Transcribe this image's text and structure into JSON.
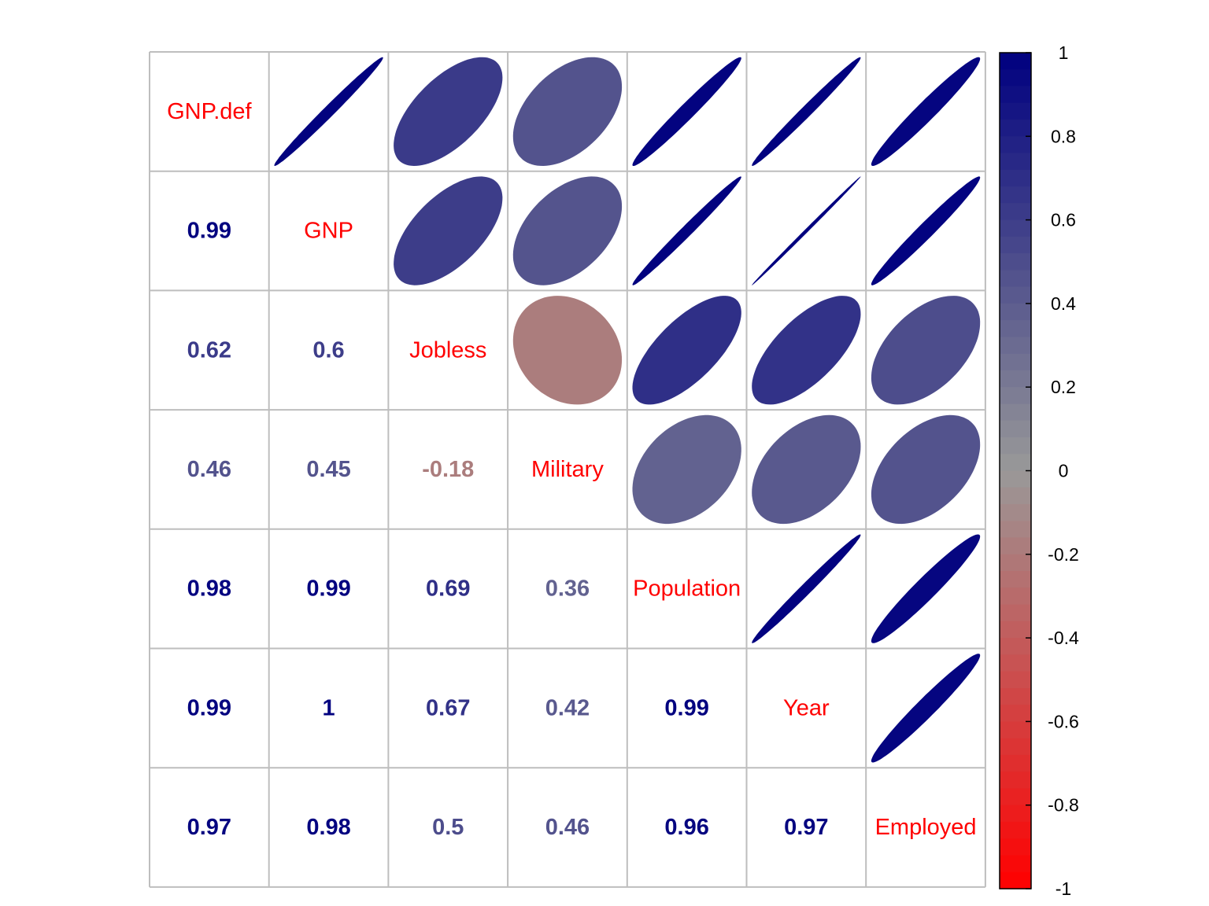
{
  "chart_data": {
    "type": "heatmap",
    "variables": [
      "GNP.def",
      "GNP",
      "Jobless",
      "Military",
      "Population",
      "Year",
      "Employed"
    ],
    "matrix": [
      [
        1.0,
        0.99,
        0.62,
        0.46,
        0.98,
        0.99,
        0.97
      ],
      [
        0.99,
        1.0,
        0.6,
        0.45,
        0.99,
        1.0,
        0.98
      ],
      [
        0.62,
        0.6,
        1.0,
        -0.18,
        0.69,
        0.67,
        0.5
      ],
      [
        0.46,
        0.45,
        -0.18,
        1.0,
        0.36,
        0.42,
        0.46
      ],
      [
        0.98,
        0.99,
        0.69,
        0.36,
        1.0,
        0.99,
        0.96
      ],
      [
        0.99,
        1.0,
        0.67,
        0.42,
        0.99,
        1.0,
        0.97
      ],
      [
        0.97,
        0.98,
        0.5,
        0.46,
        0.96,
        0.97,
        1.0
      ]
    ],
    "lower_labels": [
      [
        "0.99"
      ],
      [
        "0.62",
        "0.6"
      ],
      [
        "0.46",
        "0.45",
        "-0.18"
      ],
      [
        "0.98",
        "0.99",
        "0.69",
        "0.36"
      ],
      [
        "0.99",
        "1",
        "0.67",
        "0.42",
        "0.99"
      ],
      [
        "0.97",
        "0.98",
        "0.5",
        "0.46",
        "0.96",
        "0.97"
      ]
    ],
    "upper_method": "ellipse",
    "lower_method": "number",
    "diagonal": "variable names",
    "colorbar": {
      "range": [
        -1,
        1
      ],
      "ticks": [
        "1",
        "0.8",
        "0.6",
        "0.4",
        "0.2",
        "0",
        "-0.2",
        "-0.4",
        "-0.6",
        "-0.8",
        "-1"
      ],
      "colors": {
        "low": "#ff0000",
        "mid": "#999999",
        "high": "#00007f"
      },
      "placement": "right"
    },
    "grid": true,
    "legend": "right"
  }
}
